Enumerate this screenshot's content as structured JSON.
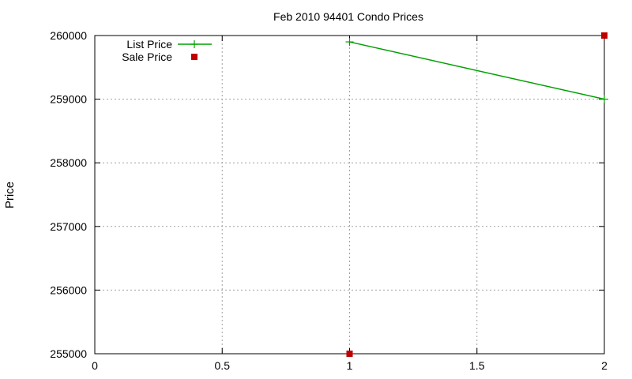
{
  "chart_data": {
    "type": "line",
    "title": "Feb 2010 94401 Condo Prices",
    "xlabel": "",
    "ylabel": "Price",
    "xlim": [
      0,
      2
    ],
    "ylim": [
      255000,
      260000
    ],
    "x_ticks": [
      "0",
      "0.5",
      "1",
      "1.5",
      "2"
    ],
    "y_ticks": [
      "255000",
      "256000",
      "257000",
      "258000",
      "259000",
      "260000"
    ],
    "grid": true,
    "legend_position": "top-left",
    "series": [
      {
        "name": "List Price",
        "style": "linespoints",
        "marker": "plus",
        "color": "#00a000",
        "x": [
          1,
          2
        ],
        "y": [
          259900,
          259000
        ]
      },
      {
        "name": "Sale Price",
        "style": "points",
        "marker": "square",
        "color": "#c00000",
        "x": [
          1,
          2
        ],
        "y": [
          255000,
          260000
        ]
      }
    ]
  }
}
